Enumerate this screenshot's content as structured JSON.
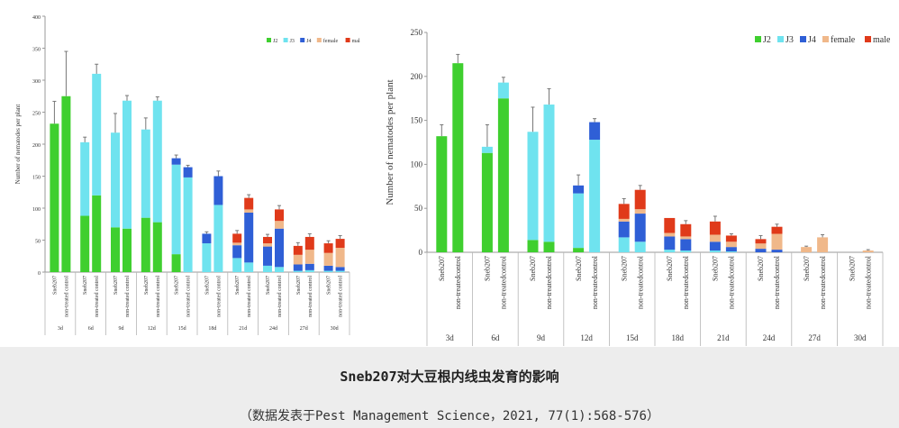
{
  "chart_data": [
    {
      "type": "bar",
      "stacked": true,
      "ylabel": "Number of nematodes per plant",
      "ylim": [
        0,
        400
      ],
      "yticks": [
        0,
        50,
        100,
        150,
        200,
        250,
        300,
        350,
        400
      ],
      "groups": [
        "3d",
        "6d",
        "9d",
        "12d",
        "15d",
        "18d",
        "21d",
        "24d",
        "27d",
        "30d"
      ],
      "bar_labels": [
        "Sneb207",
        "non-treated control"
      ],
      "legend": [
        {
          "name": "J2",
          "color": "#3fcf2f"
        },
        {
          "name": "J3",
          "color": "#6fe3ef"
        },
        {
          "name": "J4",
          "color": "#2f5fd6"
        },
        {
          "name": "female",
          "color": "#f0b88a"
        },
        {
          "name": "male",
          "color": "#e03a1a"
        }
      ],
      "bars": [
        {
          "J2": 232,
          "J3": 0,
          "J4": 0,
          "female": 0,
          "male": 0,
          "err": 35
        },
        {
          "J2": 275,
          "J3": 0,
          "J4": 0,
          "female": 0,
          "male": 0,
          "err": 70
        },
        {
          "J2": 88,
          "J3": 115,
          "J4": 0,
          "female": 0,
          "male": 0,
          "err": 8
        },
        {
          "J2": 120,
          "J3": 190,
          "J4": 0,
          "female": 0,
          "male": 0,
          "err": 15
        },
        {
          "J2": 70,
          "J3": 148,
          "J4": 0,
          "female": 0,
          "male": 0,
          "err": 30
        },
        {
          "J2": 68,
          "J3": 200,
          "J4": 0,
          "female": 0,
          "male": 0,
          "err": 8
        },
        {
          "J2": 85,
          "J3": 138,
          "J4": 0,
          "female": 0,
          "male": 0,
          "err": 18
        },
        {
          "J2": 78,
          "J3": 190,
          "J4": 0,
          "female": 0,
          "male": 0,
          "err": 6
        },
        {
          "J2": 28,
          "J3": 140,
          "J4": 10,
          "female": 0,
          "male": 0,
          "err": 5
        },
        {
          "J2": 0,
          "J3": 148,
          "J4": 16,
          "female": 0,
          "male": 0,
          "err": 3
        },
        {
          "J2": 0,
          "J3": 45,
          "J4": 15,
          "female": 0,
          "male": 0,
          "err": 3
        },
        {
          "J2": 0,
          "J3": 105,
          "J4": 45,
          "female": 0,
          "male": 0,
          "err": 8
        },
        {
          "J2": 0,
          "J3": 22,
          "J4": 20,
          "female": 4,
          "male": 14,
          "err": 5
        },
        {
          "J2": 0,
          "J3": 15,
          "J4": 78,
          "female": 5,
          "male": 18,
          "err": 5
        },
        {
          "J2": 0,
          "J3": 10,
          "J4": 30,
          "female": 5,
          "male": 10,
          "err": 4
        },
        {
          "J2": 0,
          "J3": 8,
          "J4": 60,
          "female": 12,
          "male": 18,
          "err": 6
        },
        {
          "J2": 0,
          "J3": 2,
          "J4": 10,
          "female": 15,
          "male": 14,
          "err": 5
        },
        {
          "J2": 0,
          "J3": 3,
          "J4": 10,
          "female": 22,
          "male": 20,
          "err": 5
        },
        {
          "J2": 0,
          "J3": 2,
          "J4": 8,
          "female": 20,
          "male": 15,
          "err": 4
        },
        {
          "J2": 0,
          "J3": 2,
          "J4": 6,
          "female": 30,
          "male": 14,
          "err": 5
        }
      ]
    },
    {
      "type": "bar",
      "stacked": true,
      "ylabel": "Number of nematodes per plant",
      "ylim": [
        0,
        250
      ],
      "yticks": [
        0,
        50,
        100,
        150,
        200,
        250
      ],
      "groups": [
        "3d",
        "6d",
        "9d",
        "12d",
        "15d",
        "18d",
        "21d",
        "24d",
        "27d",
        "30d"
      ],
      "bar_labels": [
        "Sneb207",
        "non-treatedcontrol"
      ],
      "legend": [
        {
          "name": "J2",
          "color": "#3fcf2f"
        },
        {
          "name": "J3",
          "color": "#6fe3ef"
        },
        {
          "name": "J4",
          "color": "#2f5fd6"
        },
        {
          "name": "female",
          "color": "#f0b88a"
        },
        {
          "name": "male",
          "color": "#e03a1a"
        }
      ],
      "bars": [
        {
          "J2": 132,
          "J3": 0,
          "J4": 0,
          "female": 0,
          "male": 0,
          "err": 13
        },
        {
          "J2": 215,
          "J3": 0,
          "J4": 0,
          "female": 0,
          "male": 0,
          "err": 10
        },
        {
          "J2": 113,
          "J3": 7,
          "J4": 0,
          "female": 0,
          "male": 0,
          "err": 25
        },
        {
          "J2": 175,
          "J3": 18,
          "J4": 0,
          "female": 0,
          "male": 0,
          "err": 6
        },
        {
          "J2": 14,
          "J3": 123,
          "J4": 0,
          "female": 0,
          "male": 0,
          "err": 28
        },
        {
          "J2": 12,
          "J3": 156,
          "J4": 0,
          "female": 0,
          "male": 0,
          "err": 18
        },
        {
          "J2": 5,
          "J3": 62,
          "J4": 9,
          "female": 0,
          "male": 0,
          "err": 12
        },
        {
          "J2": 0,
          "J3": 128,
          "J4": 20,
          "female": 0,
          "male": 0,
          "err": 4
        },
        {
          "J2": 0,
          "J3": 17,
          "J4": 18,
          "female": 3,
          "male": 17,
          "err": 6
        },
        {
          "J2": 0,
          "J3": 12,
          "J4": 32,
          "female": 5,
          "male": 22,
          "err": 5
        },
        {
          "J2": 0,
          "J3": 3,
          "J4": 15,
          "female": 4,
          "male": 17,
          "err": 0
        },
        {
          "J2": 0,
          "J3": 2,
          "J4": 13,
          "female": 3,
          "male": 14,
          "err": 4
        },
        {
          "J2": 0,
          "J3": 2,
          "J4": 10,
          "female": 8,
          "male": 15,
          "err": 6
        },
        {
          "J2": 0,
          "J3": 1,
          "J4": 5,
          "female": 6,
          "male": 7,
          "err": 2
        },
        {
          "J2": 0,
          "J3": 0,
          "J4": 4,
          "female": 6,
          "male": 5,
          "err": 4
        },
        {
          "J2": 0,
          "J3": 0,
          "J4": 3,
          "female": 18,
          "male": 8,
          "err": 3
        },
        {
          "J2": 0,
          "J3": 0,
          "J4": 0,
          "female": 6,
          "male": 0,
          "err": 1
        },
        {
          "J2": 0,
          "J3": 0,
          "J4": 0,
          "female": 17,
          "male": 0,
          "err": 3
        },
        {
          "J2": 0,
          "J3": 0,
          "J4": 0,
          "female": 0,
          "male": 0,
          "err": 0
        },
        {
          "J2": 0,
          "J3": 0,
          "J4": 0,
          "female": 2,
          "male": 0,
          "err": 1
        }
      ]
    }
  ],
  "caption": {
    "title": "Sneb207对大豆根内线虫发育的影响",
    "source": "（数据发表于Pest Management Science，2021, 77(1):568-576）"
  }
}
